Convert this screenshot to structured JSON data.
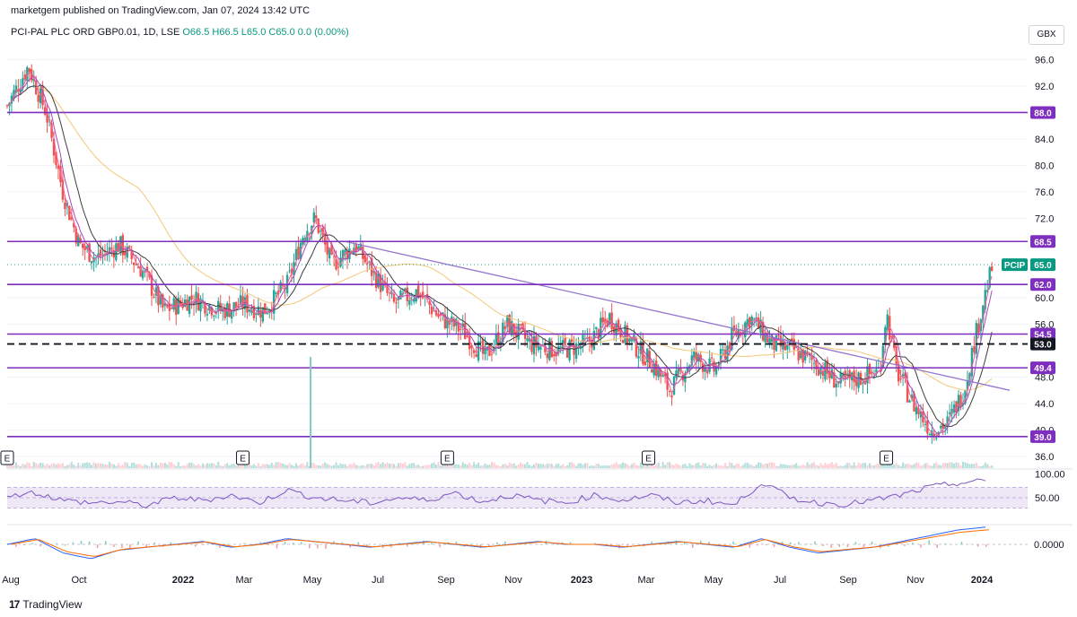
{
  "header": {
    "publisher": "marketgem published on TradingView.com, Jan 07, 2024 13:42 UTC",
    "symbol": "PCI-PAL PLC ORD GBP0.01, 1D, LSE",
    "ohlc": "O66.5  H66.5  L65.0  C65.0  0.0 (0.00%)",
    "currency": "GBX"
  },
  "footer": {
    "brand": "TradingView"
  },
  "colors": {
    "candle_up": "#26a69a",
    "candle_down": "#ef5350",
    "hline": "#7e2fbf",
    "trendline": "#9575cd",
    "ma_fast": "#f06292",
    "ma_mid": "#ab47bc",
    "ma_slow": "#3d3d3d",
    "ma_long": "#f5c779",
    "rsi": "#7e57c2",
    "rsi_band": "#ede7f6",
    "macd": "#2962ff",
    "signal": "#ff6d00",
    "price_tag": "#089981"
  },
  "chart_data": [
    {
      "type": "candlestick",
      "title": "PCI-PAL PLC ORD GBP0.01, 1D, LSE",
      "y_axis_ticks": [
        96.0,
        92.0,
        84.0,
        80.0,
        76.0,
        72.0,
        60.0,
        56.0,
        48.0,
        44.0,
        40.0,
        36.0
      ],
      "ylim": [
        34.5,
        98.5
      ],
      "x_axis_ticks": [
        "Aug",
        "Oct",
        "2022",
        "Mar",
        "May",
        "Jul",
        "Sep",
        "Nov",
        "2023",
        "Mar",
        "May",
        "Jul",
        "Sep",
        "Nov",
        "2024"
      ],
      "close_path": [
        [
          "2021-08",
          89
        ],
        [
          "2021-08-20",
          95
        ],
        [
          "2021-09-05",
          88
        ],
        [
          "2021-09-20",
          76
        ],
        [
          "2021-10-05",
          68
        ],
        [
          "2021-10-20",
          66
        ],
        [
          "2021-11-10",
          68
        ],
        [
          "2021-12-01",
          64
        ],
        [
          "2021-12-20",
          58
        ],
        [
          "2022-01-15",
          60
        ],
        [
          "2022-02-10",
          58
        ],
        [
          "2022-03-01",
          59
        ],
        [
          "2022-03-20",
          58
        ],
        [
          "2022-04-10",
          62
        ],
        [
          "2022-04-25",
          70
        ],
        [
          "2022-05-05",
          72
        ],
        [
          "2022-05-20",
          65
        ],
        [
          "2022-06-10",
          68
        ],
        [
          "2022-06-25",
          64
        ],
        [
          "2022-07-15",
          59
        ],
        [
          "2022-08-05",
          61
        ],
        [
          "2022-08-25",
          57
        ],
        [
          "2022-09-15",
          55
        ],
        [
          "2022-10-05",
          51
        ],
        [
          "2022-10-25",
          56
        ],
        [
          "2022-11-15",
          53
        ],
        [
          "2022-12-10",
          52
        ],
        [
          "2023-01-05",
          53
        ],
        [
          "2023-01-25",
          57
        ],
        [
          "2023-02-15",
          53
        ],
        [
          "2023-03-05",
          50
        ],
        [
          "2023-03-20",
          46
        ],
        [
          "2023-04-10",
          51
        ],
        [
          "2023-04-30",
          49
        ],
        [
          "2023-05-15",
          54
        ],
        [
          "2023-06-01",
          57
        ],
        [
          "2023-06-20",
          53
        ],
        [
          "2023-07-10",
          52
        ],
        [
          "2023-07-30",
          50
        ],
        [
          "2023-08-20",
          47
        ],
        [
          "2023-09-10",
          48
        ],
        [
          "2023-09-25",
          49
        ],
        [
          "2023-10-01",
          58
        ],
        [
          "2023-10-10",
          49
        ],
        [
          "2023-10-25",
          44
        ],
        [
          "2023-11-10",
          40
        ],
        [
          "2023-11-25",
          41
        ],
        [
          "2023-12-10",
          46
        ],
        [
          "2023-12-20",
          54
        ],
        [
          "2023-12-28",
          60
        ],
        [
          "2024-01-05",
          65
        ]
      ],
      "volume_spike_date": "2022-05",
      "earnings_markers": [
        {
          "date": "2021-08",
          "label": "E"
        },
        {
          "date": "2022-03",
          "label": "E"
        },
        {
          "date": "2022-09",
          "label": "E"
        },
        {
          "date": "2023-03",
          "label": "E"
        },
        {
          "date": "2023-10",
          "label": "E"
        }
      ],
      "horizontal_levels": [
        {
          "value": 88.0,
          "label": "88.0"
        },
        {
          "value": 68.5,
          "label": "68.5"
        },
        {
          "value": 62.0,
          "label": "62.0"
        },
        {
          "value": 54.5,
          "label": "54.5"
        },
        {
          "value": 53.0,
          "label": "53.0",
          "style": "dashed"
        },
        {
          "value": 49.4,
          "label": "49.4"
        },
        {
          "value": 39.0,
          "label": "39.0"
        }
      ],
      "current_price": {
        "symbol": "PCIP",
        "value": 65.0,
        "label": "65.0"
      },
      "trendline": [
        [
          "2022-06-01",
          68.5
        ],
        [
          "2024-01-20",
          46.0
        ]
      ],
      "grid": true
    },
    {
      "type": "line",
      "title": "RSI",
      "y_axis_ticks": [
        "100.00",
        "50.00"
      ],
      "ylim": [
        0,
        100
      ],
      "band": [
        30,
        70
      ],
      "values_path": [
        55,
        60,
        45,
        40,
        42,
        35,
        50,
        45,
        55,
        40,
        65,
        50,
        45,
        40,
        50,
        45,
        60,
        42,
        55,
        45,
        40,
        55,
        45,
        55,
        40,
        45,
        35,
        80,
        50,
        40,
        38,
        45,
        55,
        70,
        78,
        82
      ]
    },
    {
      "type": "line",
      "title": "MACD",
      "y_axis_ticks": [
        "0.0000"
      ],
      "values_path": [
        0,
        2,
        -3,
        -5,
        -2,
        -1,
        0,
        1,
        -1,
        0,
        2,
        1,
        0,
        -1,
        0,
        1,
        0,
        -1,
        0,
        1,
        0,
        0,
        -1,
        0,
        1,
        0,
        -1,
        2,
        -1,
        -3,
        -2,
        -1,
        1,
        3,
        5,
        6
      ]
    }
  ]
}
